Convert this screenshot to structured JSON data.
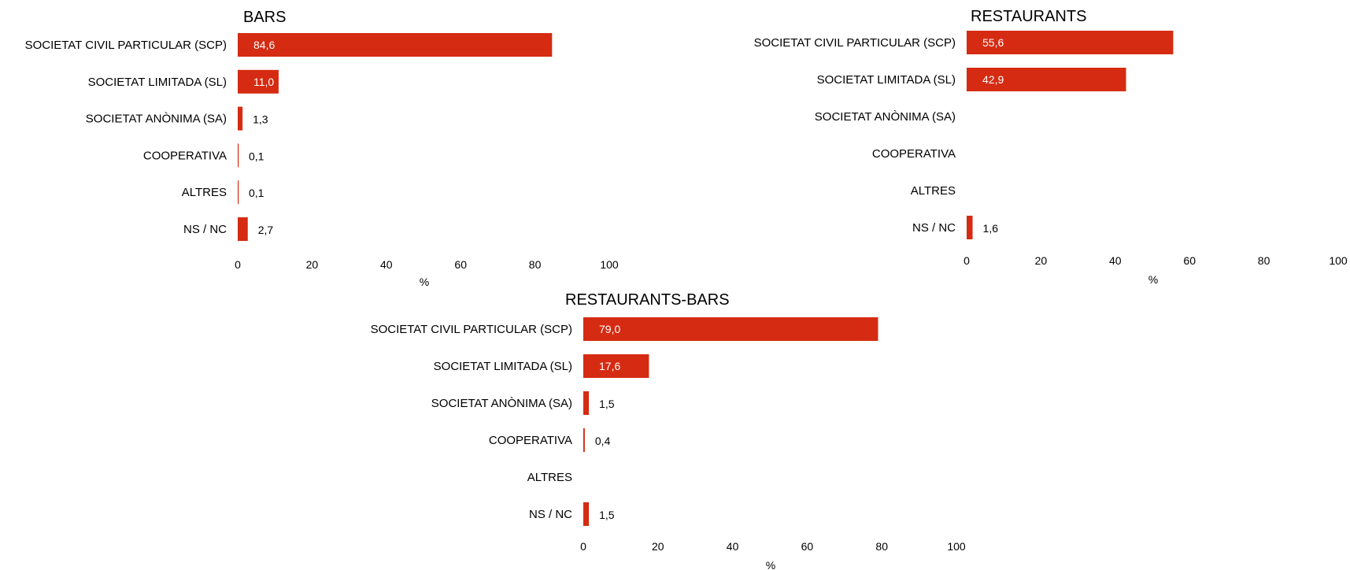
{
  "chart_data": [
    {
      "type": "bar",
      "title": "BARS",
      "categories": [
        "SOCIETAT CIVIL PARTICULAR (SCP)",
        "SOCIETAT LIMITADA (SL)",
        "SOCIETAT ANÒNIMA (SA)",
        "COOPERATIVA",
        "ALTRES",
        "NS / NC"
      ],
      "values": [
        84.6,
        11.0,
        1.3,
        0.1,
        0.1,
        2.7
      ],
      "labels": [
        "84,6",
        "11,0",
        "1,3",
        "0,1",
        "0,1",
        "2,7"
      ],
      "xlabel": "%",
      "xlim": [
        0,
        100
      ],
      "ticks": [
        0,
        20,
        40,
        60,
        80,
        100
      ],
      "bar_color": "#D52B12"
    },
    {
      "type": "bar",
      "title": "RESTAURANTS",
      "categories": [
        "SOCIETAT CIVIL PARTICULAR (SCP)",
        "SOCIETAT LIMITADA (SL)",
        "SOCIETAT ANÒNIMA (SA)",
        "COOPERATIVA",
        "ALTRES",
        "NS / NC"
      ],
      "values": [
        55.6,
        42.9,
        null,
        null,
        null,
        1.6
      ],
      "labels": [
        "55,6",
        "42,9",
        "",
        "",
        "",
        "1,6"
      ],
      "xlabel": "%",
      "xlim": [
        0,
        100
      ],
      "ticks": [
        0,
        20,
        40,
        60,
        80,
        100
      ],
      "bar_color": "#D52B12"
    },
    {
      "type": "bar",
      "title": "RESTAURANTS-BARS",
      "categories": [
        "SOCIETAT CIVIL PARTICULAR (SCP)",
        "SOCIETAT LIMITADA (SL)",
        "SOCIETAT ANÒNIMA (SA)",
        "COOPERATIVA",
        "ALTRES",
        "NS / NC"
      ],
      "values": [
        79.0,
        17.6,
        1.5,
        0.4,
        null,
        1.5
      ],
      "labels": [
        "79,0",
        "17,6",
        "1,5",
        "0,4",
        "",
        "1,5"
      ],
      "xlabel": "%",
      "xlim": [
        0,
        100
      ],
      "ticks": [
        0,
        20,
        40,
        60,
        80,
        100
      ],
      "bar_color": "#D52B12"
    }
  ]
}
